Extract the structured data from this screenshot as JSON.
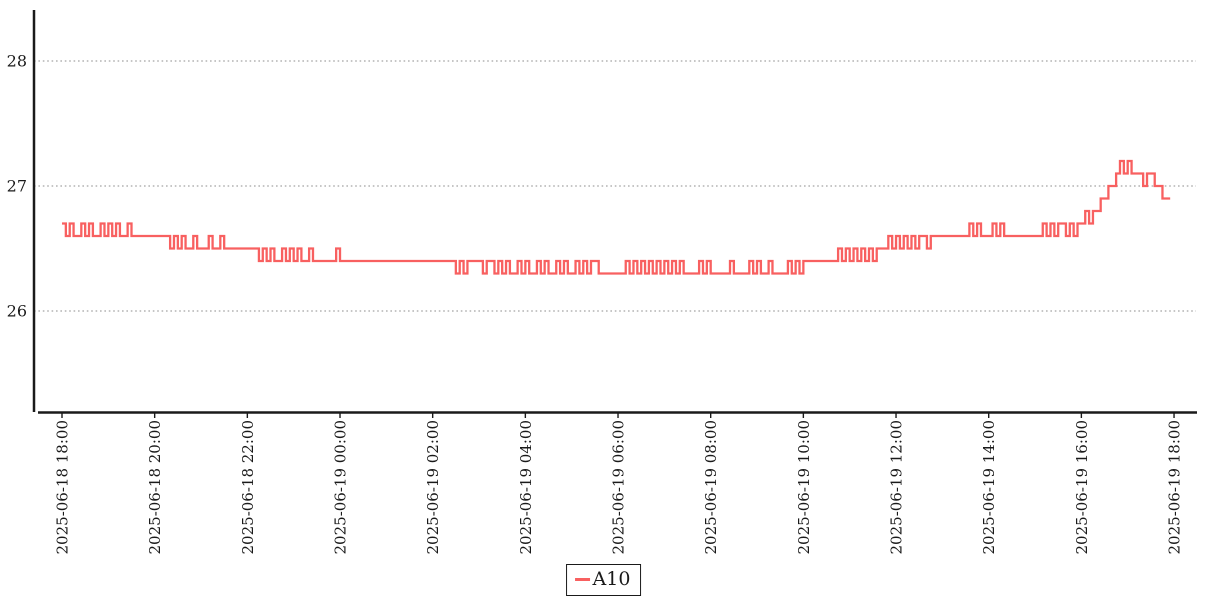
{
  "background": "#ffffff",
  "axis_color": "#1a1a1a",
  "grid_color": "#8c8c8c",
  "legend": {
    "items": [
      {
        "label": "A10",
        "color": "#f86060"
      }
    ]
  },
  "chart_data": {
    "type": "line",
    "title": "",
    "xlabel": "",
    "ylabel": "",
    "x_start": "2025-06-18 18:00",
    "x_end": "2025-06-19 18:00",
    "x_tick_labels": [
      "2025-06-18 18:00",
      "2025-06-18 20:00",
      "2025-06-18 22:00",
      "2025-06-19 00:00",
      "2025-06-19 02:00",
      "2025-06-19 04:00",
      "2025-06-19 06:00",
      "2025-06-19 08:00",
      "2025-06-19 10:00",
      "2025-06-19 12:00",
      "2025-06-19 14:00",
      "2025-06-19 16:00",
      "2025-06-19 18:00"
    ],
    "y_ticks": [
      26,
      27,
      28
    ],
    "ylim": [
      25.2,
      28.45
    ],
    "grid": {
      "horizontal": true,
      "style": "dotted",
      "color": "#8c8c8c"
    },
    "legend_position": "bottom-center",
    "series": [
      {
        "name": "A10",
        "color": "#f86060",
        "start_minute_offset": 0,
        "step_minutes": 5,
        "values": [
          26.7,
          26.6,
          26.7,
          26.6,
          26.6,
          26.7,
          26.6,
          26.7,
          26.6,
          26.6,
          26.7,
          26.6,
          26.7,
          26.6,
          26.7,
          26.6,
          26.6,
          26.7,
          26.6,
          26.6,
          26.6,
          26.6,
          26.6,
          26.6,
          26.6,
          26.6,
          26.6,
          26.6,
          26.5,
          26.6,
          26.5,
          26.6,
          26.5,
          26.5,
          26.6,
          26.5,
          26.5,
          26.5,
          26.6,
          26.5,
          26.5,
          26.6,
          26.5,
          26.5,
          26.5,
          26.5,
          26.5,
          26.5,
          26.5,
          26.5,
          26.5,
          26.4,
          26.5,
          26.4,
          26.5,
          26.4,
          26.4,
          26.5,
          26.4,
          26.5,
          26.4,
          26.5,
          26.4,
          26.4,
          26.5,
          26.4,
          26.4,
          26.4,
          26.4,
          26.4,
          26.4,
          26.5,
          26.4,
          26.4,
          26.4,
          26.4,
          26.4,
          26.4,
          26.4,
          26.4,
          26.4,
          26.4,
          26.4,
          26.4,
          26.4,
          26.4,
          26.4,
          26.4,
          26.4,
          26.4,
          26.4,
          26.4,
          26.4,
          26.4,
          26.4,
          26.4,
          26.4,
          26.4,
          26.4,
          26.4,
          26.4,
          26.4,
          26.3,
          26.4,
          26.3,
          26.4,
          26.4,
          26.4,
          26.4,
          26.3,
          26.4,
          26.4,
          26.3,
          26.4,
          26.3,
          26.4,
          26.3,
          26.3,
          26.4,
          26.3,
          26.4,
          26.3,
          26.3,
          26.4,
          26.3,
          26.4,
          26.3,
          26.3,
          26.4,
          26.3,
          26.4,
          26.3,
          26.3,
          26.4,
          26.3,
          26.4,
          26.3,
          26.4,
          26.4,
          26.3,
          26.3,
          26.3,
          26.3,
          26.3,
          26.3,
          26.3,
          26.4,
          26.3,
          26.4,
          26.3,
          26.4,
          26.3,
          26.4,
          26.3,
          26.4,
          26.3,
          26.4,
          26.3,
          26.4,
          26.3,
          26.4,
          26.3,
          26.3,
          26.3,
          26.3,
          26.4,
          26.3,
          26.4,
          26.3,
          26.3,
          26.3,
          26.3,
          26.3,
          26.4,
          26.3,
          26.3,
          26.3,
          26.3,
          26.4,
          26.3,
          26.4,
          26.3,
          26.3,
          26.4,
          26.3,
          26.3,
          26.3,
          26.3,
          26.4,
          26.3,
          26.4,
          26.3,
          26.4,
          26.4,
          26.4,
          26.4,
          26.4,
          26.4,
          26.4,
          26.4,
          26.4,
          26.5,
          26.4,
          26.5,
          26.4,
          26.5,
          26.4,
          26.5,
          26.4,
          26.5,
          26.4,
          26.5,
          26.5,
          26.5,
          26.6,
          26.5,
          26.6,
          26.5,
          26.6,
          26.5,
          26.6,
          26.5,
          26.6,
          26.6,
          26.5,
          26.6,
          26.6,
          26.6,
          26.6,
          26.6,
          26.6,
          26.6,
          26.6,
          26.6,
          26.6,
          26.7,
          26.6,
          26.7,
          26.6,
          26.6,
          26.6,
          26.7,
          26.6,
          26.7,
          26.6,
          26.6,
          26.6,
          26.6,
          26.6,
          26.6,
          26.6,
          26.6,
          26.6,
          26.6,
          26.7,
          26.6,
          26.7,
          26.6,
          26.7,
          26.7,
          26.6,
          26.7,
          26.6,
          26.7,
          26.7,
          26.8,
          26.7,
          26.8,
          26.8,
          26.9,
          26.9,
          27.0,
          27.0,
          27.1,
          27.2,
          27.1,
          27.2,
          27.1,
          27.1,
          27.1,
          27.0,
          27.1,
          27.1,
          27.0,
          27.0,
          26.9,
          26.9,
          26.9
        ]
      }
    ]
  }
}
